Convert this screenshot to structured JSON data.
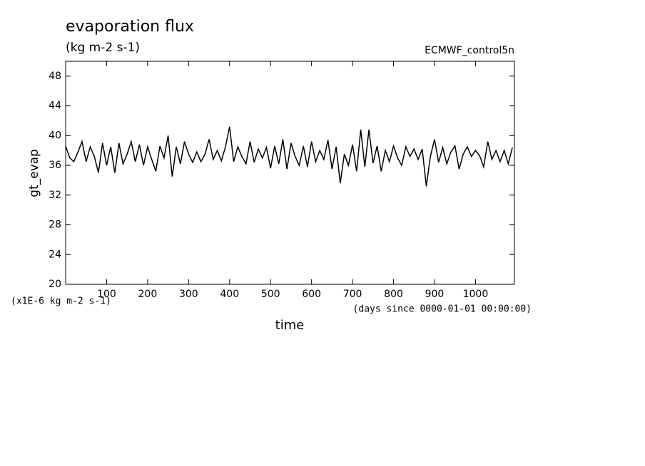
{
  "chart_data": {
    "type": "line",
    "title": "evaporation flux",
    "subtitle": "(kg m-2 s-1)",
    "source": "ECMWF_control5n",
    "y_label": "gt_evap",
    "y_units": "(x1E-6 kg m-2 s-1)",
    "x_units": "(days since 0000-01-01 00:00:00)",
    "x_label": "time",
    "xlim": [
      0,
      1095
    ],
    "ylim": [
      20,
      50
    ],
    "xticks": [
      100,
      200,
      300,
      400,
      500,
      600,
      700,
      800,
      900,
      1000
    ],
    "yticks": [
      20,
      24,
      28,
      32,
      36,
      40,
      44,
      48
    ],
    "x": [
      0,
      10,
      20,
      30,
      40,
      50,
      60,
      70,
      80,
      90,
      100,
      110,
      120,
      130,
      140,
      150,
      160,
      170,
      180,
      190,
      200,
      210,
      220,
      230,
      240,
      250,
      260,
      270,
      280,
      290,
      300,
      310,
      320,
      330,
      340,
      350,
      360,
      370,
      380,
      390,
      400,
      410,
      420,
      430,
      440,
      450,
      460,
      470,
      480,
      490,
      500,
      510,
      520,
      530,
      540,
      550,
      560,
      570,
      580,
      590,
      600,
      610,
      620,
      630,
      640,
      650,
      660,
      670,
      680,
      690,
      700,
      710,
      720,
      730,
      740,
      750,
      760,
      770,
      780,
      790,
      800,
      810,
      820,
      830,
      840,
      850,
      860,
      870,
      880,
      890,
      900,
      910,
      920,
      930,
      940,
      950,
      960,
      970,
      980,
      990,
      1000,
      1010,
      1020,
      1030,
      1040,
      1050,
      1060,
      1070,
      1080,
      1090
    ],
    "series": [
      {
        "color": "#000000",
        "values": [
          38.6,
          37,
          36.5,
          37.8,
          39.2,
          36.5,
          38.5,
          37.2,
          35,
          39,
          36,
          38.5,
          35,
          39,
          36.2,
          37.5,
          39.2,
          36.5,
          38.8,
          36,
          38.5,
          36.8,
          35.2,
          38.6,
          37,
          40,
          34.5,
          38.5,
          36.2,
          39.2,
          37.5,
          36.4,
          37.8,
          36.5,
          37.5,
          39.5,
          36.8,
          38,
          36.6,
          38.5,
          41.2,
          36.5,
          38.5,
          37.2,
          36.2,
          39.2,
          36.4,
          38.2,
          37,
          38.4,
          35.6,
          38.6,
          36.2,
          39.5,
          35.5,
          39,
          37.2,
          36,
          38.6,
          35.8,
          39.2,
          36.5,
          38,
          36.8,
          39.4,
          35.5,
          38.5,
          33.6,
          37.5,
          36,
          38.8,
          35.2,
          40.8,
          35.8,
          40.8,
          36.3,
          38.6,
          35.2,
          38,
          36.5,
          38.6,
          37,
          36,
          38.5,
          37.2,
          38.2,
          36.8,
          38.2,
          33.2,
          37.2,
          39.5,
          36.4,
          38.4,
          36.2,
          37.8,
          38.6,
          35.5,
          37.5,
          38.5,
          37.2,
          38,
          37.3,
          35.8,
          39.2,
          36.8,
          38,
          36.5,
          38,
          36.2,
          38.4
        ]
      }
    ]
  }
}
